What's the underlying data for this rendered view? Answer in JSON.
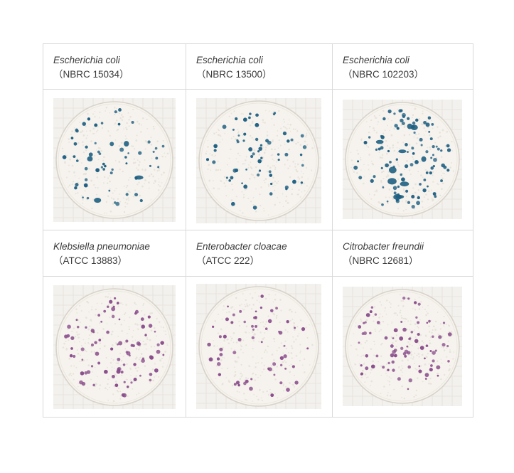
{
  "panels": [
    {
      "species": "Escherichia coli",
      "strain": "（NBRC 15034）",
      "dot_color": "#1e5f82",
      "background": "#f3f1ed",
      "seed": 11,
      "colony_count": 55,
      "large_blobs": 4
    },
    {
      "species": "Escherichia coli",
      "strain": "（NBRC 13500）",
      "dot_color": "#1e5f82",
      "background": "#f3f1ed",
      "seed": 23,
      "colony_count": 60,
      "large_blobs": 0
    },
    {
      "species": "Escherichia coli",
      "strain": "（NBRC 102203）",
      "dot_color": "#1e5f82",
      "background": "#f3f1ed",
      "seed": 37,
      "colony_count": 90,
      "large_blobs": 10
    },
    {
      "species": "Klebsiella pneumoniae",
      "strain": "（ATCC 13883）",
      "dot_color": "#8a4e8c",
      "background": "#f3f1ed",
      "seed": 41,
      "colony_count": 85,
      "large_blobs": 0
    },
    {
      "species": "Enterobacter cloacae",
      "strain": "（ATCC 222）",
      "dot_color": "#8a4e8c",
      "background": "#f3f1ed",
      "seed": 53,
      "colony_count": 60,
      "large_blobs": 0
    },
    {
      "species": "Citrobacter freundii",
      "strain": "（NBRC 12681）",
      "dot_color": "#8a4e8c",
      "background": "#f3f1ed",
      "seed": 67,
      "colony_count": 80,
      "large_blobs": 0
    }
  ]
}
